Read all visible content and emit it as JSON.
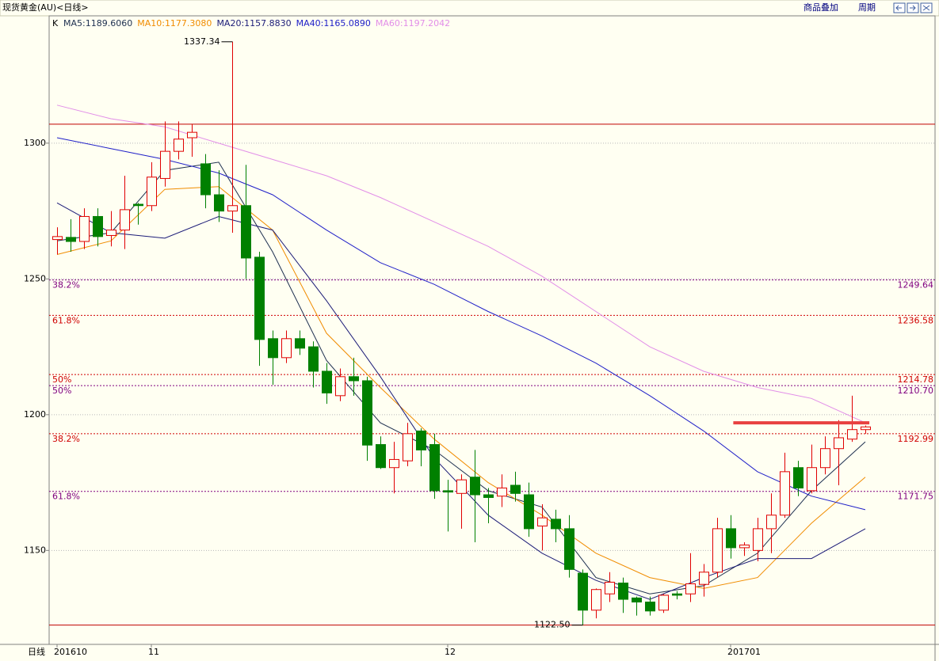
{
  "header": {
    "title": "现货黄金(AU)<日线>",
    "menu": [
      "商品叠加",
      "周期"
    ]
  },
  "chart_data": {
    "type": "candlestick",
    "panel_label": "日线",
    "indicator_label": "K",
    "categories": [
      "201610",
      null,
      null,
      null,
      null,
      null,
      null,
      "11",
      null,
      null,
      null,
      null,
      null,
      null,
      null,
      null,
      null,
      null,
      null,
      null,
      null,
      null,
      null,
      null,
      null,
      null,
      null,
      null,
      null,
      "12",
      null,
      null,
      null,
      null,
      null,
      null,
      null,
      null,
      null,
      null,
      null,
      null,
      null,
      null,
      null,
      null,
      null,
      null,
      null,
      null,
      "201701",
      null,
      null,
      null,
      null,
      null,
      null,
      null,
      null,
      null,
      null
    ],
    "open": [
      1264.5,
      1265.3,
      1263.8,
      1273,
      1266,
      1268,
      1277.5,
      1277,
      1287,
      1297,
      1302,
      1292.4,
      1281,
      1275,
      1277,
      1258,
      1228,
      1221,
      1228,
      1225,
      1216,
      1207,
      1214,
      1212.5,
      1189,
      1180.5,
      1183,
      1194,
      1189,
      1172,
      1171,
      1177,
      1170.5,
      1170,
      1174,
      1170.5,
      1159,
      1161.5,
      1158,
      1141.6,
      1128,
      1134,
      1138,
      1132.5,
      1131,
      1128,
      1134,
      1134,
      1137.5,
      1142,
      1158,
      1151,
      1150,
      1158,
      1163,
      1180.5,
      1172,
      1180.5,
      1187.5,
      1191,
      1194.5
    ],
    "high": [
      1269,
      1272,
      1276,
      1276,
      1275,
      1288,
      1278,
      1293,
      1308,
      1308,
      1307,
      1296,
      1290,
      1337.34,
      1292,
      1260,
      1231,
      1231,
      1231,
      1227,
      1219,
      1217,
      1221,
      1214,
      1192,
      1190,
      1197,
      1195,
      1193,
      1176,
      1178,
      1187,
      1173,
      1178,
      1179,
      1175,
      1167,
      1165,
      1163,
      1143,
      1136,
      1142,
      1140,
      1133,
      1133,
      1134,
      1135,
      1149,
      1145,
      1162,
      1163,
      1153,
      1162,
      1171,
      1186,
      1183,
      1189,
      1192,
      1198,
      1207,
      1196
    ],
    "low": [
      1259,
      1260,
      1261,
      1262,
      1262,
      1261,
      1270,
      1275,
      1284,
      1294,
      1295,
      1276,
      1271,
      1267,
      1250,
      1218,
      1211,
      1219,
      1222,
      1210,
      1204,
      1205,
      1207,
      1183,
      1180,
      1171,
      1181,
      1181,
      1169,
      1157,
      1158,
      1153,
      1160,
      1166,
      1168,
      1155,
      1150,
      1153,
      1140,
      1122.5,
      1125,
      1131,
      1127,
      1126,
      1126,
      1127,
      1132,
      1131,
      1133,
      1140,
      1147,
      1148,
      1146,
      1149,
      1162,
      1170,
      1171,
      1178,
      1174,
      1190,
      1193
    ],
    "close": [
      1265.6,
      1263.8,
      1273,
      1265.6,
      1268,
      1275.5,
      1277,
      1287.5,
      1297,
      1301.5,
      1304,
      1281,
      1275,
      1277,
      1257.7,
      1227.7,
      1221,
      1228,
      1224.5,
      1216,
      1208,
      1214,
      1212.5,
      1188.8,
      1180.5,
      1183.5,
      1193,
      1187,
      1172,
      1171.5,
      1176,
      1170.5,
      1169.5,
      1173,
      1171,
      1158,
      1162,
      1158,
      1143,
      1128,
      1135.6,
      1138.3,
      1132,
      1131,
      1127.7,
      1133.5,
      1133.5,
      1137.7,
      1142,
      1158,
      1151,
      1152,
      1158,
      1163,
      1179,
      1173,
      1180.5,
      1187.5,
      1191.5,
      1194.5,
      1195.5
    ],
    "up_color": "#e00000",
    "down_color": "#008000",
    "series": [
      {
        "legend": "MA5:1189.6060",
        "color": "#1e3050",
        "x": [
          0,
          4,
          8,
          12,
          16,
          20,
          24,
          28,
          32,
          36,
          40,
          44,
          48,
          52,
          56,
          60
        ],
        "values": [
          1264,
          1267,
          1290,
          1293,
          1260,
          1220,
          1197,
          1187,
          1172,
          1166,
          1140,
          1134,
          1137,
          1149,
          1172,
          1190
        ]
      },
      {
        "legend": "MA10:1177.3080",
        "color": "#f08c00",
        "x": [
          0,
          4,
          8,
          12,
          16,
          20,
          24,
          28,
          32,
          36,
          40,
          44,
          48,
          52,
          56,
          60
        ],
        "values": [
          1259,
          1264,
          1283,
          1284,
          1268,
          1230,
          1210,
          1191,
          1175,
          1163,
          1149,
          1140,
          1136,
          1140,
          1160,
          1177
        ]
      },
      {
        "legend": "MA20:1157.8830",
        "color": "#1c1c78",
        "x": [
          0,
          4,
          8,
          12,
          16,
          20,
          24,
          28,
          32,
          36,
          40,
          44,
          48,
          52,
          56,
          60
        ],
        "values": [
          1278,
          1267,
          1265,
          1273,
          1268,
          1242,
          1214,
          1184,
          1163,
          1149,
          1139,
          1132,
          1140,
          1147,
          1147,
          1158
        ]
      },
      {
        "legend": "MA40:1165.0890",
        "color": "#2020c8",
        "x": [
          0,
          4,
          8,
          12,
          16,
          20,
          24,
          28,
          32,
          36,
          40,
          44,
          48,
          52,
          56,
          60
        ],
        "values": [
          1302,
          1298,
          1294,
          1289,
          1281,
          1268,
          1256,
          1248,
          1238,
          1229,
          1219,
          1207,
          1194,
          1179,
          1170,
          1165
        ]
      },
      {
        "legend": "MA60:1197.2042",
        "color": "#e28ee8",
        "x": [
          0,
          4,
          8,
          12,
          16,
          20,
          24,
          28,
          32,
          36,
          40,
          44,
          48,
          52,
          56,
          60
        ],
        "values": [
          1314,
          1309,
          1306,
          1300,
          1294,
          1288,
          1280,
          1271,
          1262,
          1251,
          1238,
          1225,
          1216,
          1210,
          1206,
          1197
        ]
      }
    ],
    "fib_levels": [
      {
        "ratio": "38.2%",
        "value": 1249.64,
        "value_label": "1249.64",
        "color": "#800080"
      },
      {
        "ratio": "61.8%",
        "value": 1236.58,
        "value_label": "1236.58",
        "color": "#d00000"
      },
      {
        "ratio": "50%",
        "value": 1214.78,
        "value_label": "1214.78",
        "color": "#d00000"
      },
      {
        "ratio": "50%",
        "value": 1210.7,
        "value_label": "1210.70",
        "color": "#800080"
      },
      {
        "ratio": "38.2%",
        "value": 1192.99,
        "value_label": "1192.99",
        "color": "#d00000"
      },
      {
        "ratio": "61.8%",
        "value": 1171.75,
        "value_label": "1171.75",
        "color": "#800080"
      }
    ],
    "hlines": [
      {
        "value": 1307,
        "color": "#c00000"
      },
      {
        "value": 1122.5,
        "color": "#c00000"
      }
    ],
    "segment": {
      "value": 1197,
      "x": [
        50.2,
        60.3
      ],
      "color": "#e84040"
    },
    "annotations": [
      {
        "text": "1337.34",
        "index": 13,
        "value": 1337.34
      },
      {
        "text": "1122.50",
        "index": 39,
        "value": 1122.5
      }
    ],
    "ylim": [
      1115.4,
      1346.9
    ],
    "yticks": [
      1150,
      1200,
      1250,
      1300
    ],
    "grid": true
  }
}
